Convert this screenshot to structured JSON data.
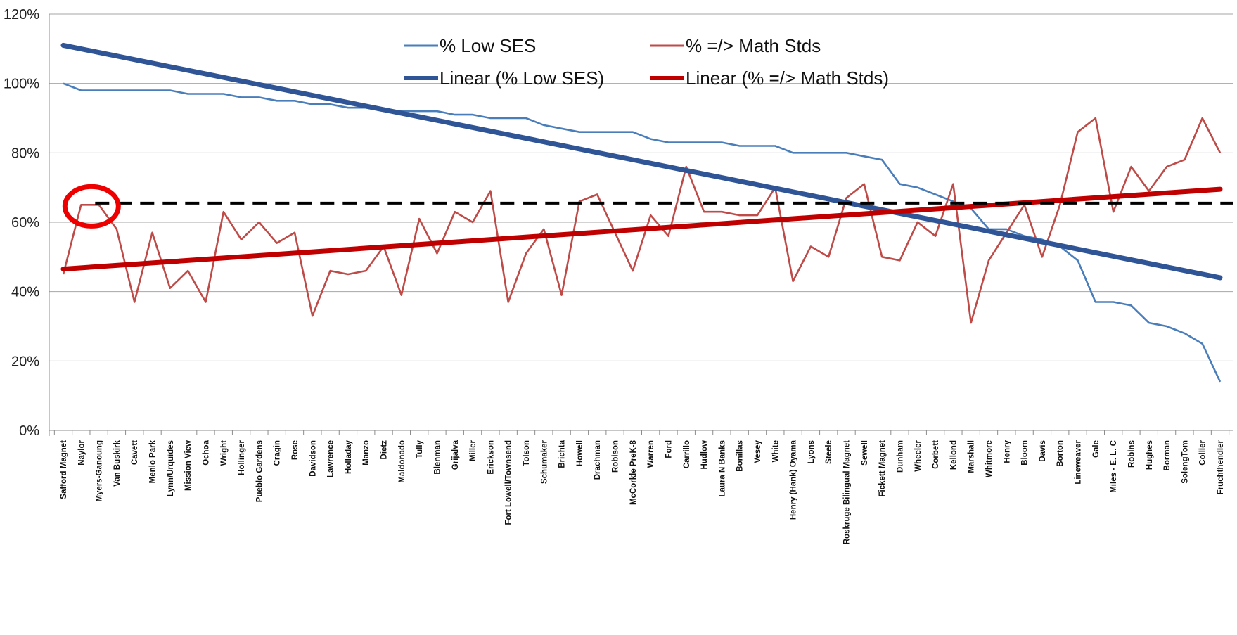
{
  "chart_data": {
    "type": "line",
    "ylim": [
      0,
      120
    ],
    "yticks": [
      "0%",
      "20%",
      "40%",
      "60%",
      "80%",
      "100%",
      "120%"
    ],
    "grid": true,
    "legend_position": "top-center",
    "categories": [
      "Safford Magnet",
      "Naylor",
      "Myers-Ganoung",
      "Van Buskirk",
      "Cavett",
      "Menlo Park",
      "Lynn/Urquides",
      "Mission View",
      "Ochoa",
      "Wright",
      "Hollinger",
      "Pueblo Gardens",
      "Cragin",
      "Rose",
      "Davidson",
      "Lawrence",
      "Holladay",
      "Manzo",
      "Dietz",
      "Maldonado",
      "Tully",
      "Blenman",
      "Grijalva",
      "Miller",
      "Erickson",
      "Fort Lowell/Townsend",
      "Tolson",
      "Schumaker",
      "Brichta",
      "Howell",
      "Drachman",
      "Robison",
      "McCorkle PreK-8",
      "Warren",
      "Ford",
      "Carrillo",
      "Hudlow",
      "Laura N Banks",
      "Bonillas",
      "Vesey",
      "White",
      "Henry (Hank) Oyama",
      "Lyons",
      "Steele",
      "Roskruge Bilingual Magnet",
      "Sewell",
      "Fickett Magnet",
      "Dunham",
      "Wheeler",
      "Corbett",
      "Kellond",
      "Marshall",
      "Whitmore",
      "Henry",
      "Bloom",
      "Davis",
      "Borton",
      "Lineweaver",
      "Gale",
      "Miles - E. L. C",
      "Robins",
      "Hughes",
      "Borman",
      "SolengTom",
      "Collier",
      "Fruchthendler"
    ],
    "series": [
      {
        "name": "% Low SES",
        "color": "#4a7ebb",
        "kind": "line",
        "values": [
          100,
          98,
          98,
          98,
          98,
          98,
          98,
          97,
          97,
          97,
          96,
          96,
          95,
          95,
          94,
          94,
          93,
          93,
          92,
          92,
          92,
          92,
          91,
          91,
          90,
          90,
          90,
          88,
          87,
          86,
          86,
          86,
          86,
          84,
          83,
          83,
          83,
          83,
          82,
          82,
          82,
          80,
          80,
          80,
          80,
          79,
          78,
          71,
          70,
          68,
          66,
          64,
          58,
          58,
          56,
          55,
          53,
          49,
          37,
          37,
          36,
          31,
          30,
          28,
          25,
          14
        ]
      },
      {
        "name": "% =/> Math Stds",
        "color": "#be4b48",
        "kind": "line",
        "values": [
          45,
          65,
          65,
          58,
          37,
          57,
          41,
          46,
          37,
          63,
          55,
          60,
          54,
          57,
          33,
          46,
          45,
          46,
          53,
          39,
          61,
          51,
          63,
          60,
          69,
          37,
          51,
          58,
          39,
          66,
          68,
          57,
          46,
          62,
          56,
          76,
          63,
          63,
          62,
          62,
          70,
          43,
          53,
          50,
          67,
          71,
          50,
          49,
          60,
          56,
          71,
          31,
          49,
          57,
          65,
          50,
          65,
          86,
          90,
          63,
          76,
          69,
          76,
          78,
          90,
          80
        ]
      },
      {
        "name": "Linear (% Low SES)",
        "color": "#2f5597",
        "kind": "trend",
        "start": 111,
        "end": 44
      },
      {
        "name": "Linear (% =/> Math Stds)",
        "color": "#c00000",
        "kind": "trend",
        "start": 46.5,
        "end": 69.5
      }
    ],
    "annotations": {
      "reference_line_value": 65.5,
      "reference_line_color": "#000000",
      "circle_highlight_category": "Naylor",
      "circle_highlight_value": 65,
      "circle_color": "#ee0000"
    }
  }
}
